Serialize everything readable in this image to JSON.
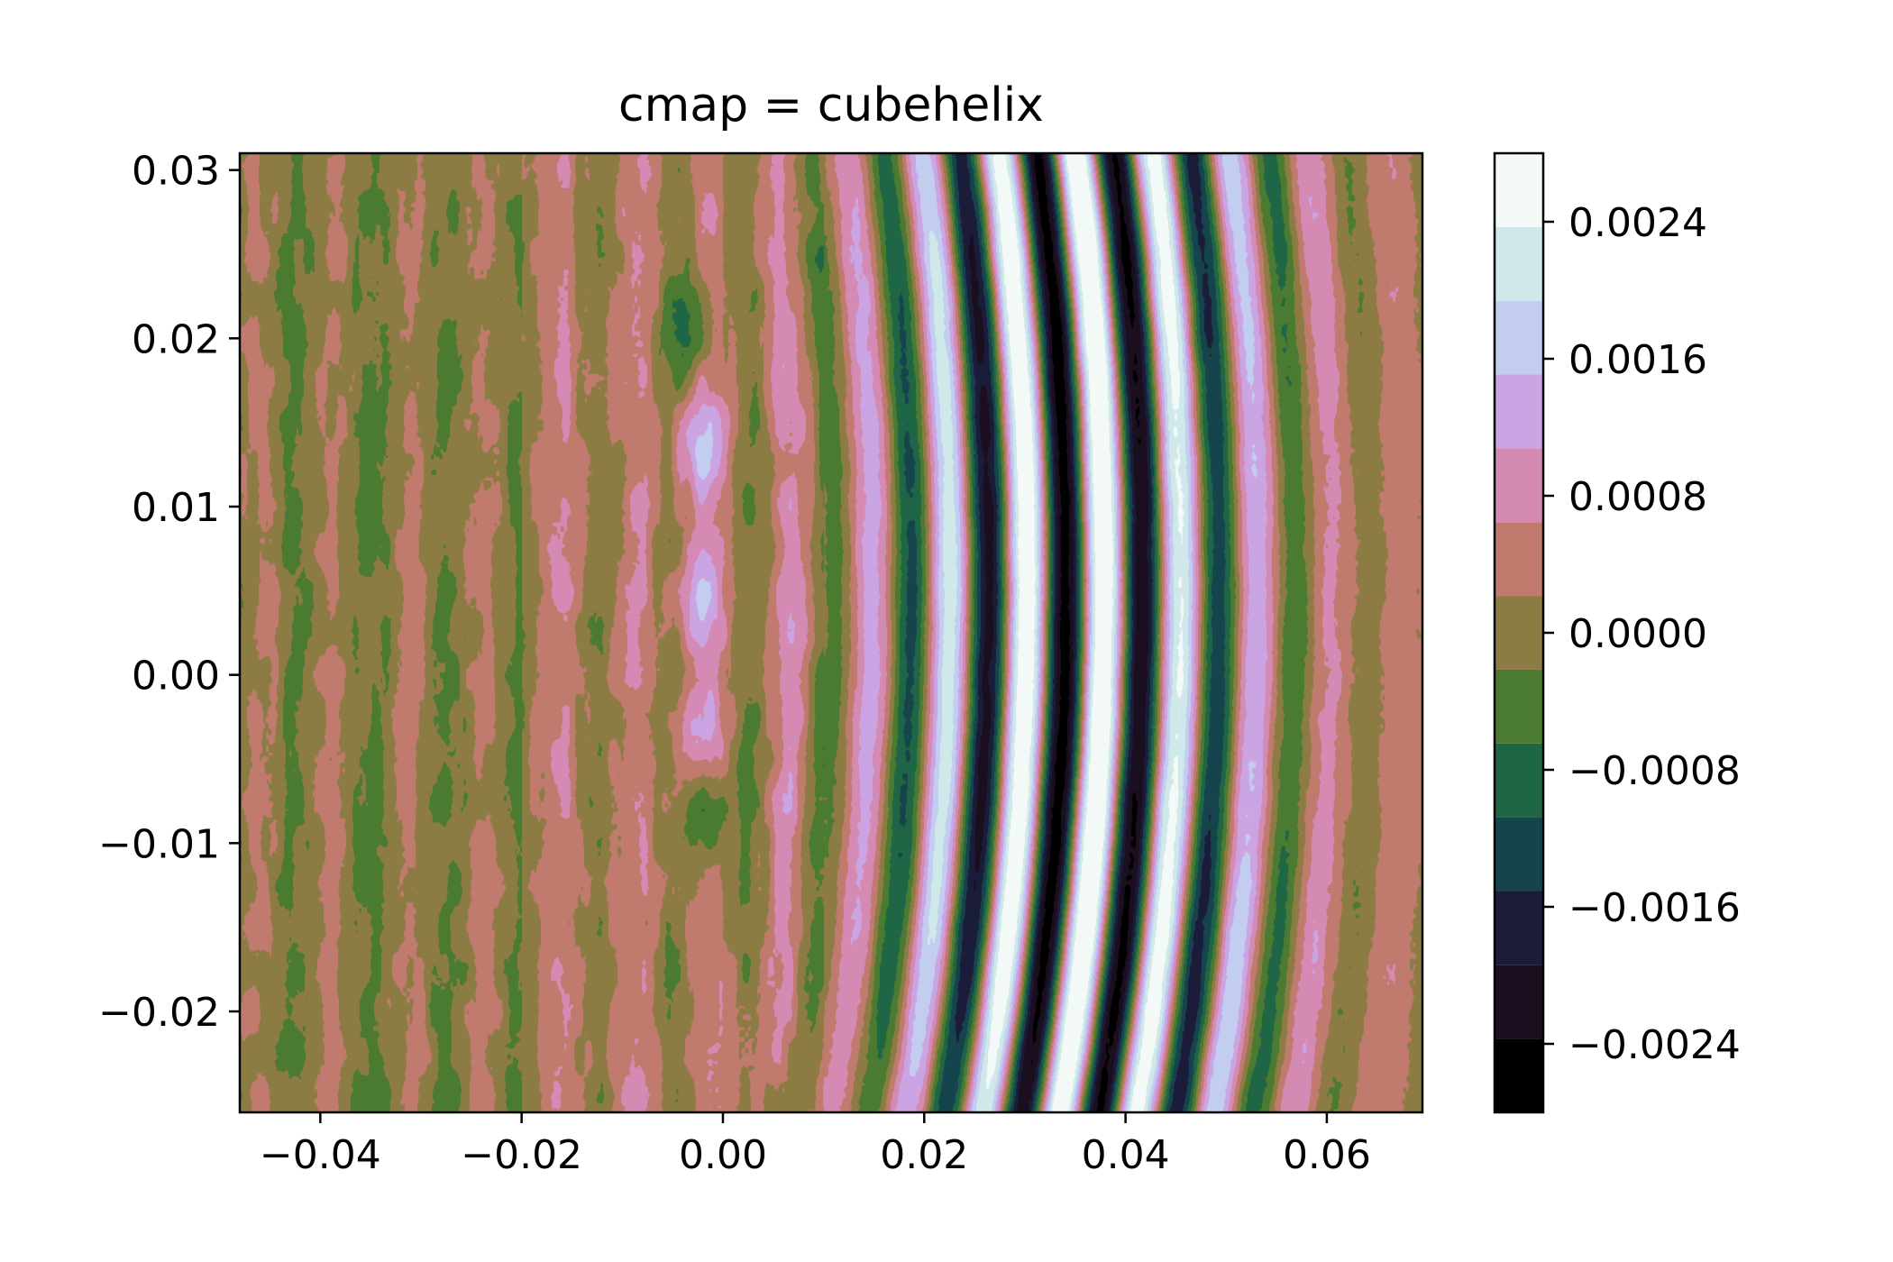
{
  "chart_data": {
    "type": "heatmap",
    "plot_kind": "filled contour",
    "title": "cmap = cubehelix",
    "xlabel": "",
    "ylabel": "",
    "xlim": [
      -0.048,
      0.0695
    ],
    "ylim": [
      -0.026,
      0.031
    ],
    "x_ticks": [
      -0.04,
      -0.02,
      0.0,
      0.02,
      0.04,
      0.06
    ],
    "x_tick_labels": [
      "−0.04",
      "−0.02",
      "0.00",
      "0.02",
      "0.04",
      "0.06"
    ],
    "y_ticks": [
      -0.02,
      -0.01,
      0.0,
      0.01,
      0.02,
      0.03
    ],
    "y_tick_labels": [
      "−0.02",
      "−0.01",
      "0.00",
      "0.01",
      "0.02",
      "0.03"
    ],
    "colormap": "cubehelix",
    "grid": false,
    "levels": [
      -0.0028,
      -0.0024,
      -0.002,
      -0.0016,
      -0.0012,
      -0.0008,
      -0.0004,
      0.0,
      0.0004,
      0.0008,
      0.0012,
      0.0016,
      0.002,
      0.0024
    ],
    "level_colors": [
      "#000000",
      "#1a0e1f",
      "#1b1c3a",
      "#16444c",
      "#1e6645",
      "#4b7a31",
      "#8c7c44",
      "#c07a6e",
      "#d48ab2",
      "#cba5e3",
      "#c2cdf0",
      "#cfe8ea",
      "#f2f9f6"
    ],
    "colorbar": {
      "ticks": [
        -0.0024,
        -0.0016,
        -0.0008,
        0.0,
        0.0008,
        0.0016,
        0.0024
      ],
      "tick_labels": [
        "−0.0024",
        "−0.0016",
        "−0.0008",
        "0.0000",
        "0.0008",
        "0.0016",
        "0.0024"
      ],
      "range": [
        -0.0028,
        0.0024
      ]
    },
    "field_description": "Interference fringe pattern: nearly vertical, slightly curved bands with spacing of about 0.0077 in x, amplitude strongest (about ±0.0026) near x ≈ 0.035 and fading toward both edges; three small positive lobes stacked near x ≈ -0.002; noisy low-amplitude background for x < -0.01.",
    "field_model": {
      "fringe_period": 0.0077,
      "fringe_phase": 0.0,
      "peak_amplitude": 0.0026,
      "peak_x": 0.035,
      "envelope_width": 0.019,
      "curvature": 4.5,
      "lobes": [
        {
          "x": -0.0025,
          "y": 0.0135,
          "value": 0.0011
        },
        {
          "x": -0.0025,
          "y": 0.0045,
          "value": 0.0009
        },
        {
          "x": -0.003,
          "y": -0.0035,
          "value": 0.0009
        },
        {
          "x": -0.0015,
          "y": -0.0085,
          "value": -0.0012
        },
        {
          "x": -0.0035,
          "y": 0.0205,
          "value": -0.0008
        }
      ]
    }
  }
}
